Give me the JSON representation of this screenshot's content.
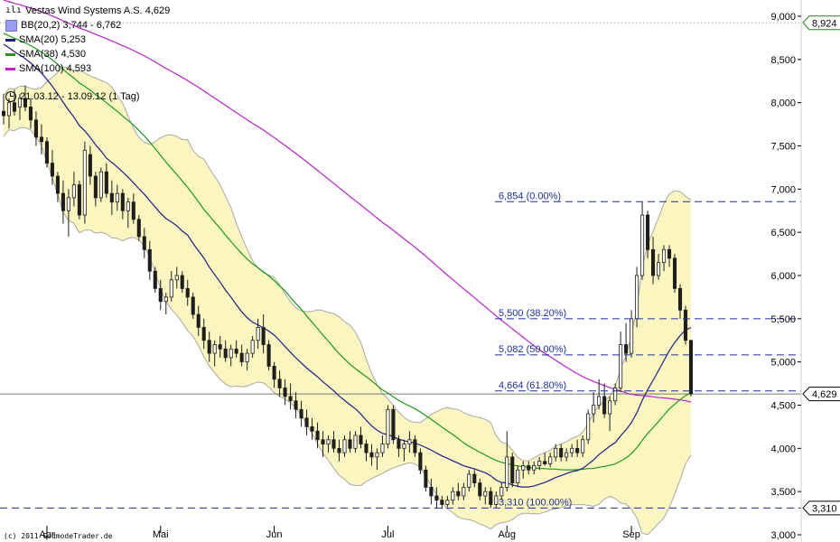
{
  "header": {
    "title": "Vestas Wind Systems A.S. 4,629",
    "range": "21.03.12 - 13.09.12 (1 Tag)"
  },
  "legend": [
    {
      "label": "BB(20,2) 3,744 - 6,762",
      "color": "#9b9bef",
      "kind": "box"
    },
    {
      "label": "SMA(20) 5,253",
      "color": "#1c1c8c",
      "kind": "line"
    },
    {
      "label": "SMA(38) 4,530",
      "color": "#1a9a1a",
      "kind": "line"
    },
    {
      "label": "SMA(100) 4,593",
      "color": "#bb22cc",
      "kind": "line"
    }
  ],
  "copyright": "(c) 2011 GodmodeTrader.de",
  "chart_data": {
    "type": "candlestick",
    "ylim": [
      3.0,
      9.0
    ],
    "y_ticks": [
      "3,000",
      "3,500",
      "4,000",
      "4,500",
      "5,000",
      "5,500",
      "6,000",
      "6,500",
      "7,000",
      "7,500",
      "8,000",
      "8,500",
      "9,000"
    ],
    "y_tick_values": [
      3.0,
      3.5,
      4.0,
      4.5,
      5.0,
      5.5,
      6.0,
      6.5,
      7.0,
      7.5,
      8.0,
      8.5,
      9.0
    ],
    "x_months": [
      {
        "label": "Apr",
        "index": 8
      },
      {
        "label": "Mai",
        "index": 29
      },
      {
        "label": "Jun",
        "index": 50
      },
      {
        "label": "Jul",
        "index": 71
      },
      {
        "label": "Aug",
        "index": 93
      },
      {
        "label": "Sep",
        "index": 116
      }
    ],
    "current_price": {
      "value": 4.629,
      "label": "4,629",
      "color": "#000000"
    },
    "top_price": {
      "value": 8.924,
      "label": "8,924",
      "color": "#1a8a1a"
    },
    "low_price": {
      "value": 3.31,
      "label": "3,310",
      "color": "#000000"
    },
    "fibonacci": [
      {
        "label": "6,854 (0.00%)",
        "value": 6.854
      },
      {
        "label": "5,500 (38.20%)",
        "value": 5.5
      },
      {
        "label": "5,082 (50.00%)",
        "value": 5.082
      },
      {
        "label": "4,664 (61.80%)",
        "value": 4.664
      },
      {
        "label": "3,310 (100.00%)",
        "value": 3.31
      }
    ],
    "candles": [
      [
        7.9,
        8.1,
        7.75,
        7.85
      ],
      [
        7.85,
        8.05,
        7.7,
        8.0
      ],
      [
        8.0,
        8.15,
        7.85,
        7.9
      ],
      [
        7.95,
        8.1,
        7.8,
        8.05
      ],
      [
        8.05,
        8.2,
        7.9,
        7.95
      ],
      [
        7.95,
        8.05,
        7.7,
        7.8
      ],
      [
        7.8,
        7.9,
        7.5,
        7.6
      ],
      [
        7.6,
        7.75,
        7.4,
        7.55
      ],
      [
        7.55,
        7.6,
        7.25,
        7.3
      ],
      [
        7.3,
        7.45,
        7.05,
        7.15
      ],
      [
        7.15,
        7.2,
        6.85,
        6.95
      ],
      [
        6.95,
        7.1,
        6.6,
        6.75
      ],
      [
        6.75,
        7.0,
        6.45,
        6.9
      ],
      [
        6.9,
        7.2,
        6.8,
        7.05
      ],
      [
        7.05,
        7.1,
        6.65,
        6.7
      ],
      [
        6.7,
        7.55,
        6.6,
        7.45
      ],
      [
        7.4,
        7.5,
        7.05,
        7.15
      ],
      [
        7.15,
        7.2,
        6.8,
        6.9
      ],
      [
        6.9,
        7.25,
        6.85,
        7.2
      ],
      [
        7.2,
        7.3,
        6.9,
        6.95
      ],
      [
        6.95,
        7.1,
        6.7,
        6.85
      ],
      [
        6.85,
        7.05,
        6.75,
        6.95
      ],
      [
        6.95,
        7.0,
        6.65,
        6.75
      ],
      [
        6.75,
        6.9,
        6.55,
        6.85
      ],
      [
        6.85,
        6.95,
        6.6,
        6.65
      ],
      [
        6.65,
        6.7,
        6.4,
        6.45
      ],
      [
        6.45,
        6.55,
        6.2,
        6.3
      ],
      [
        6.3,
        6.4,
        5.95,
        6.05
      ],
      [
        6.05,
        6.1,
        5.8,
        5.85
      ],
      [
        5.85,
        5.95,
        5.6,
        5.7
      ],
      [
        5.7,
        5.8,
        5.55,
        5.75
      ],
      [
        5.75,
        6.05,
        5.7,
        5.95
      ],
      [
        5.95,
        6.1,
        5.85,
        6.0
      ],
      [
        6.0,
        6.05,
        5.8,
        5.85
      ],
      [
        5.85,
        5.95,
        5.65,
        5.75
      ],
      [
        5.75,
        5.8,
        5.5,
        5.55
      ],
      [
        5.55,
        5.65,
        5.3,
        5.4
      ],
      [
        5.4,
        5.5,
        5.15,
        5.25
      ],
      [
        5.25,
        5.35,
        5.0,
        5.1
      ],
      [
        5.1,
        5.25,
        4.95,
        5.2
      ],
      [
        5.2,
        5.3,
        5.05,
        5.15
      ],
      [
        5.15,
        5.25,
        5.0,
        5.05
      ],
      [
        5.05,
        5.2,
        4.95,
        5.15
      ],
      [
        5.15,
        5.25,
        5.05,
        5.1
      ],
      [
        5.1,
        5.2,
        4.95,
        5.0
      ],
      [
        5.0,
        5.15,
        4.9,
        5.1
      ],
      [
        5.1,
        5.3,
        5.05,
        5.25
      ],
      [
        5.25,
        5.5,
        5.15,
        5.4
      ],
      [
        5.4,
        5.55,
        5.1,
        5.2
      ],
      [
        5.2,
        5.25,
        4.9,
        4.95
      ],
      [
        4.95,
        5.0,
        4.7,
        4.8
      ],
      [
        4.8,
        4.9,
        4.6,
        4.7
      ],
      [
        4.7,
        4.8,
        4.5,
        4.6
      ],
      [
        4.6,
        4.75,
        4.45,
        4.55
      ],
      [
        4.55,
        4.65,
        4.35,
        4.45
      ],
      [
        4.45,
        4.55,
        4.25,
        4.35
      ],
      [
        4.35,
        4.45,
        4.15,
        4.25
      ],
      [
        4.25,
        4.35,
        4.1,
        4.2
      ],
      [
        4.2,
        4.3,
        4.0,
        4.1
      ],
      [
        4.1,
        4.2,
        3.9,
        4.05
      ],
      [
        4.05,
        4.15,
        3.95,
        4.1
      ],
      [
        4.1,
        4.2,
        3.95,
        4.0
      ],
      [
        4.0,
        4.1,
        3.85,
        3.95
      ],
      [
        3.95,
        4.15,
        3.9,
        4.1
      ],
      [
        4.1,
        4.2,
        3.95,
        4.0
      ],
      [
        4.0,
        4.2,
        3.95,
        4.15
      ],
      [
        4.15,
        4.25,
        4.0,
        4.05
      ],
      [
        4.05,
        4.1,
        3.85,
        3.95
      ],
      [
        3.95,
        4.05,
        3.8,
        3.9
      ],
      [
        3.9,
        4.0,
        3.75,
        3.95
      ],
      [
        3.95,
        4.15,
        3.9,
        4.05
      ],
      [
        4.05,
        4.5,
        4.0,
        4.45
      ],
      [
        4.45,
        4.5,
        4.05,
        4.1
      ],
      [
        4.1,
        4.15,
        3.9,
        4.0
      ],
      [
        4.0,
        4.1,
        3.85,
        4.05
      ],
      [
        4.05,
        4.2,
        3.95,
        4.1
      ],
      [
        4.1,
        4.15,
        3.9,
        3.95
      ],
      [
        3.95,
        4.0,
        3.7,
        3.75
      ],
      [
        3.75,
        3.8,
        3.5,
        3.55
      ],
      [
        3.55,
        3.65,
        3.35,
        3.45
      ],
      [
        3.45,
        3.55,
        3.3,
        3.4
      ],
      [
        3.4,
        3.45,
        3.3,
        3.35
      ],
      [
        3.35,
        3.45,
        3.32,
        3.4
      ],
      [
        3.4,
        3.55,
        3.35,
        3.5
      ],
      [
        3.5,
        3.6,
        3.4,
        3.45
      ],
      [
        3.45,
        3.6,
        3.4,
        3.55
      ],
      [
        3.55,
        3.75,
        3.5,
        3.7
      ],
      [
        3.7,
        3.75,
        3.55,
        3.6
      ],
      [
        3.6,
        3.65,
        3.4,
        3.45
      ],
      [
        3.45,
        3.55,
        3.35,
        3.5
      ],
      [
        3.5,
        3.55,
        3.31,
        3.35
      ],
      [
        3.35,
        3.5,
        3.31,
        3.45
      ],
      [
        3.45,
        3.6,
        3.4,
        3.55
      ],
      [
        3.55,
        4.2,
        3.5,
        3.9
      ],
      [
        3.9,
        3.95,
        3.55,
        3.6
      ],
      [
        3.6,
        3.8,
        3.55,
        3.75
      ],
      [
        3.75,
        3.85,
        3.65,
        3.8
      ],
      [
        3.8,
        3.85,
        3.7,
        3.75
      ],
      [
        3.75,
        3.85,
        3.7,
        3.8
      ],
      [
        3.8,
        3.9,
        3.75,
        3.85
      ],
      [
        3.85,
        3.95,
        3.8,
        3.82
      ],
      [
        3.82,
        3.95,
        3.78,
        3.9
      ],
      [
        3.9,
        4.05,
        3.85,
        4.0
      ],
      [
        4.0,
        4.05,
        3.85,
        3.9
      ],
      [
        3.9,
        4.0,
        3.85,
        3.95
      ],
      [
        3.95,
        4.05,
        3.9,
        4.0
      ],
      [
        4.0,
        4.1,
        3.9,
        3.95
      ],
      [
        3.95,
        4.15,
        3.9,
        4.1
      ],
      [
        4.1,
        4.45,
        4.05,
        4.4
      ],
      [
        4.4,
        4.65,
        4.3,
        4.5
      ],
      [
        4.5,
        4.8,
        4.45,
        4.6
      ],
      [
        4.6,
        4.75,
        4.35,
        4.4
      ],
      [
        4.4,
        4.6,
        4.2,
        4.55
      ],
      [
        4.55,
        4.75,
        4.5,
        4.7
      ],
      [
        4.7,
        5.35,
        4.65,
        5.2
      ],
      [
        5.2,
        5.45,
        5.0,
        5.1
      ],
      [
        5.1,
        5.6,
        5.05,
        5.5
      ],
      [
        5.5,
        6.1,
        5.4,
        6.0
      ],
      [
        6.0,
        6.85,
        5.95,
        6.7
      ],
      [
        6.7,
        6.75,
        6.2,
        6.3
      ],
      [
        6.3,
        6.45,
        5.9,
        6.0
      ],
      [
        6.0,
        6.25,
        5.95,
        6.15
      ],
      [
        6.15,
        6.35,
        6.05,
        6.3
      ],
      [
        6.3,
        6.35,
        6.1,
        6.2
      ],
      [
        6.2,
        6.25,
        5.8,
        5.85
      ],
      [
        5.85,
        5.9,
        5.5,
        5.6
      ],
      [
        5.6,
        5.65,
        5.2,
        5.25
      ],
      [
        5.25,
        5.25,
        4.6,
        4.63
      ]
    ]
  }
}
